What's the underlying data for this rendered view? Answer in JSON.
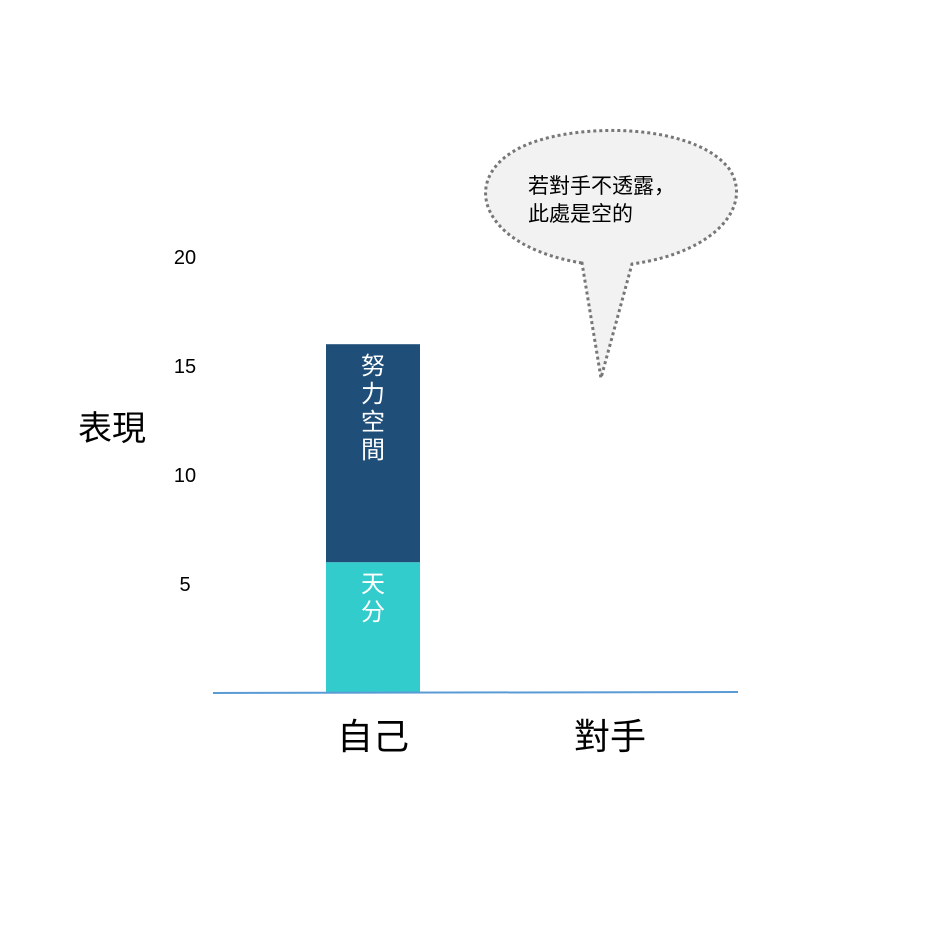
{
  "chart_data": {
    "type": "bar",
    "stacked": true,
    "categories": [
      "自己",
      "對手"
    ],
    "ylabel": "表現",
    "yticks": [
      5,
      10,
      15,
      20
    ],
    "ylim": [
      0,
      20
    ],
    "grid": false,
    "series": [
      {
        "name": "天分",
        "values": [
          6,
          null
        ],
        "color": "#33cccc",
        "label_vertical": [
          "天",
          "分"
        ]
      },
      {
        "name": "努力空間",
        "values": [
          10,
          null
        ],
        "color": "#1f4e79",
        "label_vertical": [
          "努",
          "力",
          "空",
          "間"
        ]
      }
    ],
    "axis_color": "#5b9bd5",
    "callout": {
      "lines": [
        "若對手不透露，",
        "此處是空的"
      ],
      "fill": "#f2f2f2",
      "border": "#777777"
    }
  }
}
